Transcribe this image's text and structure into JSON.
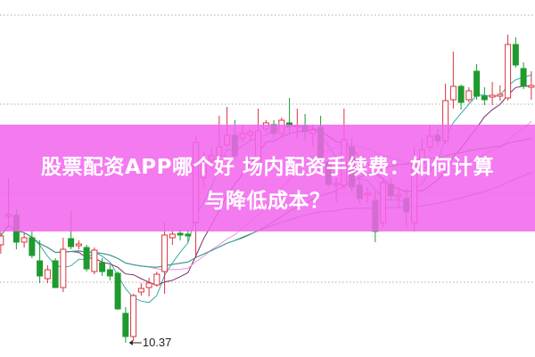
{
  "title": {
    "line1": "股票配资APP哪个好 场内配资手续费：如何计算",
    "line2": "与降低成本？"
  },
  "colors": {
    "up": "#d8343c",
    "down": "#1e9a2e",
    "banner": "#f264ee",
    "grid": "#bdbdbd",
    "ma": [
      "#3aa8a8",
      "#7a2a6a",
      "#f090e8",
      "#3c8a3c",
      "#3a9a9a"
    ]
  },
  "chart_data": {
    "type": "candlestick",
    "ylim": [
      10.05,
      18.07
    ],
    "grid": true,
    "gridlines": [
      17.73,
      15.73,
      13.73,
      11.73
    ],
    "min_marker": {
      "label": "10.37",
      "value": 10.37,
      "index": 16
    },
    "moving_averages": [
      5,
      10,
      20,
      30,
      60
    ],
    "ohlc": [
      [
        12.57,
        12.87,
        12.37,
        12.77
      ],
      [
        13.21,
        14.07,
        12.97,
        13.25
      ],
      [
        13.23,
        13.37,
        12.47,
        12.63
      ],
      [
        12.63,
        12.83,
        12.51,
        12.73
      ],
      [
        12.73,
        12.87,
        12.27,
        12.33
      ],
      [
        12.21,
        12.67,
        11.71,
        11.87
      ],
      [
        11.81,
        12.11,
        11.71,
        12.01
      ],
      [
        12.21,
        12.27,
        11.61,
        11.61
      ],
      [
        11.61,
        12.73,
        11.51,
        12.47
      ],
      [
        12.71,
        13.33,
        12.47,
        12.53
      ],
      [
        12.55,
        12.67,
        12.47,
        12.59
      ],
      [
        12.51,
        12.57,
        11.97,
        12.03
      ],
      [
        11.97,
        12.51,
        11.91,
        12.45
      ],
      [
        12.17,
        12.27,
        11.87,
        11.97
      ],
      [
        12.01,
        12.11,
        11.77,
        11.87
      ],
      [
        11.93,
        11.97,
        11.11,
        11.13
      ],
      [
        11.03,
        11.17,
        10.37,
        10.51
      ],
      [
        10.51,
        11.47,
        10.41,
        11.43
      ],
      [
        11.51,
        11.71,
        11.43,
        11.59
      ],
      [
        11.61,
        11.83,
        11.41,
        11.71
      ],
      [
        11.67,
        11.97,
        11.63,
        11.91
      ],
      [
        11.97,
        13.07,
        11.47,
        12.79
      ],
      [
        12.73,
        12.87,
        12.57,
        12.81
      ],
      [
        12.83,
        12.91,
        12.67,
        12.79
      ],
      [
        12.81,
        12.91,
        12.63,
        12.77
      ],
      [
        13.07,
        15.01,
        12.27,
        14.87
      ],
      [
        14.07,
        14.67,
        13.87,
        14.37
      ],
      [
        14.47,
        14.77,
        14.27,
        14.57
      ],
      [
        14.57,
        15.47,
        14.51,
        14.77
      ],
      [
        14.81,
        15.67,
        14.77,
        15.03
      ],
      [
        15.03,
        15.37,
        14.51,
        14.57
      ],
      [
        14.97,
        15.27,
        14.87,
        15.07
      ],
      [
        15.03,
        15.17,
        14.91,
        15.11
      ],
      [
        14.21,
        15.63,
        14.17,
        15.13
      ],
      [
        15.17,
        15.37,
        15.11,
        15.31
      ],
      [
        15.27,
        15.37,
        14.97,
        15.07
      ],
      [
        15.07,
        15.43,
        14.97,
        15.37
      ],
      [
        15.31,
        15.87,
        15.07,
        15.23
      ],
      [
        15.21,
        15.63,
        14.97,
        15.25
      ],
      [
        15.25,
        15.51,
        14.91,
        15.11
      ],
      [
        15.07,
        15.27,
        14.77,
        15.15
      ],
      [
        15.21,
        15.47,
        14.47,
        14.53
      ],
      [
        14.43,
        14.51,
        13.87,
        13.93
      ],
      [
        13.91,
        14.07,
        13.53,
        13.95
      ],
      [
        13.91,
        15.63,
        13.83,
        14.93
      ],
      [
        14.77,
        14.97,
        13.77,
        13.87
      ],
      [
        13.91,
        14.07,
        13.51,
        13.61
      ],
      [
        13.69,
        13.87,
        13.51,
        13.73
      ],
      [
        13.57,
        13.77,
        12.63,
        12.87
      ],
      [
        13.07,
        14.07,
        12.97,
        13.97
      ],
      [
        13.93,
        14.07,
        13.57,
        13.67
      ],
      [
        13.65,
        13.87,
        13.37,
        13.69
      ],
      [
        13.61,
        13.83,
        12.97,
        13.31
      ],
      [
        13.07,
        14.77,
        12.87,
        14.37
      ],
      [
        14.41,
        14.97,
        14.31,
        14.71
      ],
      [
        14.77,
        15.27,
        14.67,
        15.01
      ],
      [
        15.03,
        15.17,
        14.77,
        14.91
      ],
      [
        14.91,
        16.19,
        14.83,
        15.81
      ],
      [
        15.83,
        16.91,
        15.63,
        16.13
      ],
      [
        16.13,
        16.17,
        15.61,
        15.77
      ],
      [
        15.83,
        16.11,
        15.77,
        16.03
      ],
      [
        16.47,
        16.63,
        15.83,
        15.91
      ],
      [
        15.91,
        16.11,
        15.71,
        15.83
      ],
      [
        15.89,
        16.23,
        15.71,
        15.93
      ],
      [
        15.91,
        16.15,
        15.81,
        15.95
      ],
      [
        15.87,
        17.29,
        15.81,
        17.07
      ],
      [
        17.07,
        17.23,
        16.55,
        16.61
      ],
      [
        16.53,
        16.67,
        16.07,
        16.13
      ],
      [
        16.11,
        16.47,
        15.83,
        16.15
      ]
    ]
  }
}
